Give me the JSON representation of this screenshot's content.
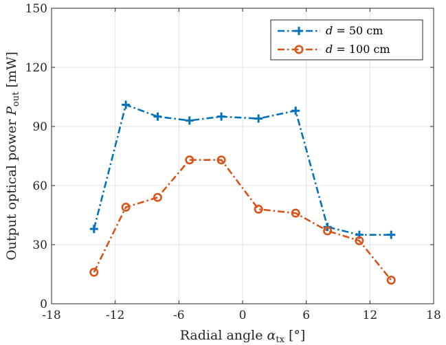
{
  "chart_data": {
    "type": "line",
    "title": "",
    "xlabel": "Radial angle α_tx [°]",
    "ylabel": "Output optical power P_out [mW]",
    "xlim": [
      -18,
      18
    ],
    "ylim": [
      0,
      150
    ],
    "xticks": [
      -18,
      -12,
      -6,
      0,
      6,
      12,
      18
    ],
    "yticks": [
      0,
      30,
      60,
      90,
      120,
      150
    ],
    "xtick_labels": [
      "-18",
      "-12",
      "-6",
      "0",
      "6",
      "12",
      "18"
    ],
    "ytick_labels": [
      "0",
      "30",
      "60",
      "90",
      "120",
      "150"
    ],
    "grid": true,
    "legend_position": "top-right",
    "series": [
      {
        "name": "d = 50 cm",
        "color": "#0072BD",
        "marker": "plus",
        "x": [
          -14,
          -11,
          -8,
          -5,
          -2,
          1.5,
          5,
          8,
          11,
          14
        ],
        "y": [
          38,
          101,
          95,
          93,
          95,
          94,
          98,
          39,
          35,
          35
        ]
      },
      {
        "name": "d = 100 cm",
        "color": "#D95319",
        "marker": "circle",
        "x": [
          -14,
          -11,
          -8,
          -5,
          -2,
          1.5,
          5,
          8,
          11,
          14
        ],
        "y": [
          16,
          49,
          54,
          73,
          73,
          48,
          46,
          37,
          32,
          12
        ]
      }
    ],
    "legend": [
      {
        "var": "d",
        "text": " = 50 cm"
      },
      {
        "var": "d",
        "text": " = 100 cm"
      }
    ],
    "axis_title_parts": {
      "x": {
        "main": "Radial angle ",
        "symbol": "α",
        "sub": "tx",
        "unit": " [°]"
      },
      "y": {
        "main": "Output optical power ",
        "symbol": "P",
        "sub": "out",
        "unit": " [mW]"
      }
    }
  }
}
